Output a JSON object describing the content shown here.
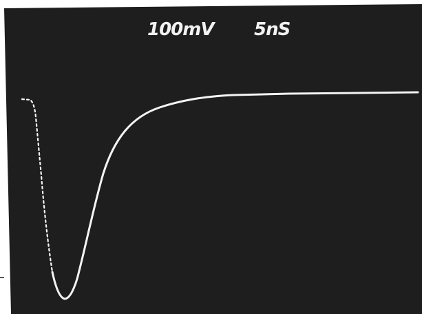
{
  "readouts": {
    "vertical_scale": "100mV",
    "time_scale": "5nS"
  },
  "colors": {
    "screen_background": "#1e1e1e",
    "trace": "#f4f4f4",
    "readout_text": "#f2f2f2"
  },
  "trace_shape": "negative-going pulse that drops sharply to a minimum near the left, then recovers smoothly to a flat baseline"
}
